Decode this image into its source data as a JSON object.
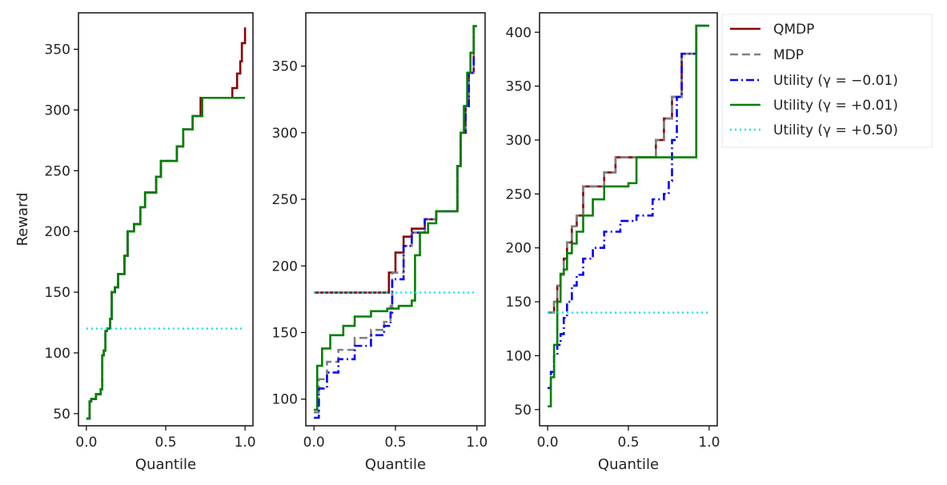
{
  "chart_data": {
    "type": "line",
    "series_styles": [
      {
        "name": "QMDP",
        "color": "#8b0000",
        "dash": "solid"
      },
      {
        "name": "MDP",
        "color": "#808080",
        "dash": "dashed"
      },
      {
        "name": "Utility (γ = −0.01)",
        "color": "#0000ff",
        "dash": "dashdot"
      },
      {
        "name": "Utility (γ = +0.01)",
        "color": "#008000",
        "dash": "solid"
      },
      {
        "name": "Utility (γ = +0.50)",
        "color": "#00e5ee",
        "dash": "dotted"
      }
    ],
    "legend": {
      "placement": "outside-right",
      "entries": [
        "QMDP",
        "MDP",
        "Utility (γ = −0.01)",
        "Utility (γ = +0.01)",
        "Utility (γ = +0.50)"
      ]
    },
    "panels": [
      {
        "xlabel": "Quantile",
        "ylabel": "Reward",
        "xlim": [
          -0.05,
          1.05
        ],
        "ylim": [
          40,
          380
        ],
        "xticks": [
          0.0,
          0.5,
          1.0
        ],
        "xtick_labels": [
          "0.0",
          "0.5",
          "1.0"
        ],
        "yticks": [
          50,
          100,
          150,
          200,
          250,
          300,
          350
        ],
        "ytick_labels": [
          "50",
          "100",
          "150",
          "200",
          "250",
          "300",
          "350"
        ],
        "series": [
          {
            "name": "QMDP",
            "x": [
              0,
              0.02,
              0.03,
              0.06,
              0.09,
              0.1,
              0.11,
              0.12,
              0.13,
              0.15,
              0.16,
              0.18,
              0.2,
              0.24,
              0.26,
              0.3,
              0.34,
              0.37,
              0.44,
              0.47,
              0.57,
              0.61,
              0.67,
              0.72,
              0.9,
              0.92,
              0.95,
              0.97,
              0.98,
              1.0
            ],
            "y": [
              46,
              60,
              62,
              66,
              70,
              98,
              102,
              118,
              120,
              128,
              150,
              154,
              165,
              180,
              200,
              206,
              220,
              232,
              245,
              258,
              270,
              284,
              295,
              310,
              310,
              318,
              330,
              340,
              355,
              368
            ]
          },
          {
            "name": "MDP",
            "x": [
              0,
              0.02,
              0.03,
              0.06,
              0.09,
              0.1,
              0.11,
              0.12,
              0.13,
              0.15,
              0.16,
              0.18,
              0.2,
              0.24,
              0.26,
              0.3,
              0.34,
              0.37,
              0.44,
              0.47,
              0.57,
              0.61,
              0.67,
              0.73,
              0.77,
              1.0
            ],
            "y": [
              46,
              60,
              62,
              66,
              70,
              98,
              102,
              118,
              120,
              128,
              150,
              154,
              165,
              180,
              200,
              206,
              220,
              232,
              245,
              258,
              270,
              284,
              295,
              310,
              310,
              310
            ]
          },
          {
            "name": "Utility (γ = −0.01)",
            "x": [
              0,
              0.02,
              0.03,
              0.06,
              0.09,
              0.1,
              0.11,
              0.12,
              0.13,
              0.15,
              0.16,
              0.18,
              0.2,
              0.24,
              0.26,
              0.3,
              0.34,
              0.37,
              0.44,
              0.47,
              0.57,
              0.61,
              0.67,
              0.73,
              0.77,
              1.0
            ],
            "y": [
              46,
              60,
              62,
              66,
              70,
              98,
              102,
              118,
              120,
              128,
              150,
              154,
              165,
              180,
              200,
              206,
              220,
              232,
              245,
              258,
              270,
              284,
              295,
              310,
              310,
              310
            ]
          },
          {
            "name": "Utility (γ = +0.01)",
            "x": [
              0,
              0.02,
              0.03,
              0.06,
              0.09,
              0.1,
              0.11,
              0.12,
              0.13,
              0.15,
              0.16,
              0.18,
              0.2,
              0.24,
              0.26,
              0.3,
              0.34,
              0.37,
              0.44,
              0.47,
              0.57,
              0.61,
              0.67,
              0.73,
              0.77,
              1.0
            ],
            "y": [
              46,
              60,
              62,
              66,
              70,
              98,
              102,
              118,
              120,
              128,
              150,
              154,
              165,
              180,
              200,
              206,
              220,
              232,
              245,
              258,
              270,
              284,
              295,
              310,
              310,
              310
            ]
          },
          {
            "name": "Utility (γ = +0.50)",
            "x": [
              0,
              1.0
            ],
            "y": [
              120,
              120
            ]
          }
        ]
      },
      {
        "xlabel": "Quantile",
        "ylabel": "",
        "xlim": [
          -0.05,
          1.05
        ],
        "ylim": [
          80,
          390
        ],
        "xticks": [
          0.0,
          0.5,
          1.0
        ],
        "xtick_labels": [
          "0.0",
          "0.5",
          "1.0"
        ],
        "yticks": [
          100,
          150,
          200,
          250,
          300,
          350
        ],
        "ytick_labels": [
          "100",
          "150",
          "200",
          "250",
          "300",
          "350"
        ],
        "series": [
          {
            "name": "QMDP",
            "x": [
              0,
              0.43,
              0.46,
              0.5,
              0.55,
              0.6,
              0.68,
              0.75,
              0.86,
              0.88,
              0.9,
              0.93,
              0.95,
              0.98,
              1.0
            ],
            "y": [
              180,
              180,
              195,
              210,
              222,
              228,
              235,
              241,
              241,
              275,
              300,
              320,
              345,
              380,
              380
            ]
          },
          {
            "name": "MDP",
            "x": [
              0,
              0.03,
              0.08,
              0.15,
              0.25,
              0.35,
              0.43,
              0.47,
              0.48,
              0.55,
              0.6,
              0.68,
              0.75,
              0.86,
              0.88,
              0.9,
              0.93,
              0.95,
              0.98,
              1.0
            ],
            "y": [
              90,
              115,
              128,
              137,
              146,
              152,
              158,
              170,
              195,
              215,
              225,
              235,
              241,
              241,
              275,
              300,
              320,
              345,
              380,
              380
            ]
          },
          {
            "name": "Utility (γ = −0.01)",
            "x": [
              0,
              0.03,
              0.08,
              0.15,
              0.25,
              0.35,
              0.43,
              0.47,
              0.48,
              0.55,
              0.6,
              0.68,
              0.75,
              0.86,
              0.88,
              0.9,
              0.93,
              0.95,
              0.98,
              1.0
            ],
            "y": [
              86,
              108,
              120,
              130,
              140,
              148,
              155,
              165,
              190,
              215,
              225,
              235,
              241,
              241,
              275,
              300,
              320,
              345,
              380,
              380
            ]
          },
          {
            "name": "Utility (γ = +0.01)",
            "x": [
              0,
              0.02,
              0.05,
              0.1,
              0.18,
              0.25,
              0.35,
              0.45,
              0.52,
              0.6,
              0.62,
              0.65,
              0.7,
              0.75,
              0.85,
              0.88,
              0.9,
              0.92,
              0.94,
              0.96,
              0.98,
              1.0
            ],
            "y": [
              92,
              125,
              138,
              148,
              155,
              162,
              166,
              168,
              170,
              174,
              208,
              225,
              232,
              241,
              241,
              275,
              300,
              320,
              345,
              360,
              380,
              380
            ]
          },
          {
            "name": "Utility (γ = +0.50)",
            "x": [
              0,
              1.0
            ],
            "y": [
              180,
              180
            ]
          }
        ]
      },
      {
        "xlabel": "Quantile",
        "ylabel": "",
        "xlim": [
          -0.05,
          1.05
        ],
        "ylim": [
          35,
          418
        ],
        "xticks": [
          0.0,
          0.5,
          1.0
        ],
        "xtick_labels": [
          "0.0",
          "0.5",
          "1.0"
        ],
        "yticks": [
          50,
          100,
          150,
          200,
          250,
          300,
          350,
          400
        ],
        "ytick_labels": [
          "50",
          "100",
          "150",
          "200",
          "250",
          "300",
          "350",
          "400"
        ],
        "series": [
          {
            "name": "QMDP",
            "x": [
              0,
              0.02,
              0.04,
              0.06,
              0.08,
              0.1,
              0.12,
              0.15,
              0.18,
              0.22,
              0.28,
              0.35,
              0.42,
              0.5,
              0.6,
              0.67,
              0.72,
              0.77,
              0.83,
              0.9,
              0.92,
              1.0
            ],
            "y": [
              140,
              140,
              150,
              165,
              175,
              190,
              205,
              220,
              230,
              257,
              257,
              270,
              284,
              284,
              284,
              300,
              320,
              340,
              380,
              380,
              406,
              406
            ]
          },
          {
            "name": "MDP",
            "x": [
              0,
              0.02,
              0.04,
              0.06,
              0.08,
              0.1,
              0.12,
              0.15,
              0.18,
              0.22,
              0.28,
              0.35,
              0.42,
              0.5,
              0.6,
              0.67,
              0.72,
              0.77,
              0.83,
              0.9,
              0.92,
              1.0
            ],
            "y": [
              140,
              140,
              150,
              165,
              175,
              190,
              205,
              220,
              230,
              257,
              257,
              270,
              284,
              284,
              284,
              300,
              320,
              340,
              380,
              380,
              406,
              406
            ]
          },
          {
            "name": "Utility (γ = −0.01)",
            "x": [
              0,
              0.02,
              0.04,
              0.06,
              0.08,
              0.1,
              0.12,
              0.15,
              0.18,
              0.22,
              0.28,
              0.35,
              0.45,
              0.55,
              0.65,
              0.72,
              0.75,
              0.77,
              0.8,
              0.83,
              0.9,
              0.92,
              1.0
            ],
            "y": [
              70,
              85,
              100,
              110,
              120,
              135,
              150,
              165,
              175,
              190,
              200,
              215,
              225,
              230,
              245,
              250,
              262,
              300,
              340,
              380,
              380,
              406,
              406
            ]
          },
          {
            "name": "Utility (γ = +0.01)",
            "x": [
              0,
              0.02,
              0.04,
              0.06,
              0.08,
              0.1,
              0.12,
              0.15,
              0.18,
              0.22,
              0.28,
              0.35,
              0.42,
              0.5,
              0.55,
              0.6,
              0.9,
              0.92,
              1.0
            ],
            "y": [
              53,
              80,
              110,
              150,
              176,
              180,
              195,
              204,
              215,
              230,
              245,
              257,
              257,
              260,
              284,
              284,
              284,
              406,
              406
            ]
          },
          {
            "name": "Utility (γ = +0.50)",
            "x": [
              0,
              1.0
            ],
            "y": [
              140,
              140
            ]
          }
        ]
      }
    ]
  }
}
